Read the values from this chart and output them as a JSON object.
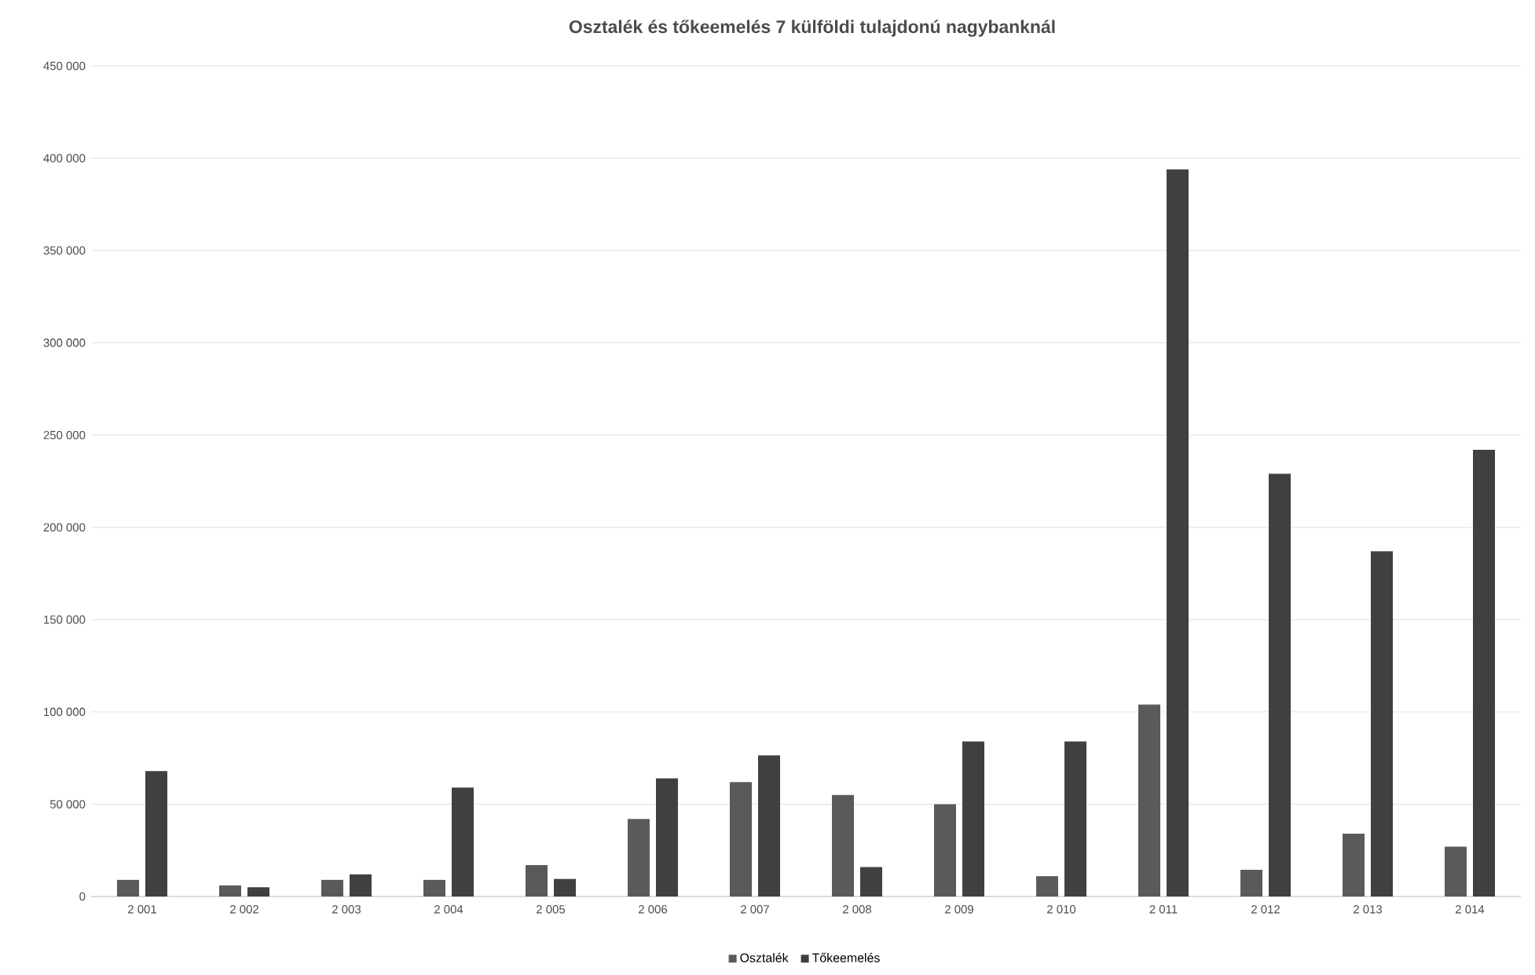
{
  "chart_data": {
    "type": "bar",
    "title": "Osztalék és tőkeemelés 7 külföldi tulajdonú nagybanknál",
    "categories": [
      "2 001",
      "2 002",
      "2 003",
      "2 004",
      "2 005",
      "2 006",
      "2 007",
      "2 008",
      "2 009",
      "2 010",
      "2 011",
      "2 012",
      "2 013",
      "2 014"
    ],
    "series": [
      {
        "name": "Osztalék",
        "color": "#5a5a5a",
        "values": [
          9000,
          6000,
          9000,
          9000,
          17000,
          42000,
          62000,
          55000,
          50000,
          11000,
          104000,
          14500,
          34000,
          27000
        ]
      },
      {
        "name": "Tőkeemelés",
        "color": "#404040",
        "values": [
          68000,
          5000,
          12000,
          59000,
          9500,
          64000,
          76500,
          16000,
          84000,
          84000,
          394000,
          229000,
          187000,
          242000
        ]
      }
    ],
    "ylim": [
      0,
      450000
    ],
    "yticks": [
      0,
      {
        "value": 50000,
        "label": "50 000"
      },
      {
        "value": 100000,
        "label": "100 000"
      },
      {
        "value": 150000,
        "label": "150 000"
      },
      {
        "value": 200000,
        "label": "200 000"
      },
      {
        "value": 250000,
        "label": "250 000"
      },
      {
        "value": 300000,
        "label": "300 000"
      },
      {
        "value": 350000,
        "label": "350 000"
      },
      {
        "value": 400000,
        "label": "400 000"
      },
      {
        "value": 450000,
        "label": "450 000"
      }
    ],
    "grid": "y",
    "legend": "bottom"
  }
}
